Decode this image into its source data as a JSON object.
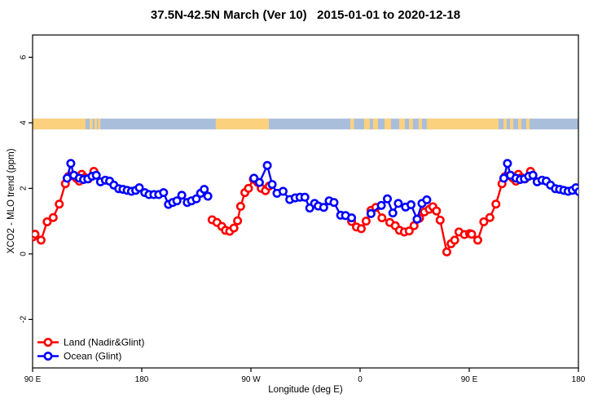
{
  "page": {
    "background": "#ffffff"
  },
  "chart_data": {
    "type": "line",
    "title": "37.5N-42.5N March (Ver 10)   2015-01-01 to 2020-12-18",
    "xlabel": "Longitude (deg E)",
    "ylabel": "XCO2 - MLO trend (ppm)",
    "x_axis_span_deg": [
      90,
      540
    ],
    "x_wrap_note": "x axis spans 450 degrees of longitude: 90E eastward to 180, then 90W, 0, 90E, 180 - the 90E-180E range is plotted twice (wrap-around)",
    "ylim": [
      -3.48,
      6.68
    ],
    "grid": false,
    "legend_position": "bottom-left",
    "x_ticks": [
      {
        "axis_pos": 90,
        "label": "90 E"
      },
      {
        "axis_pos": 180,
        "label": "180"
      },
      {
        "axis_pos": 270,
        "label": "90 W"
      },
      {
        "axis_pos": 360,
        "label": "0"
      },
      {
        "axis_pos": 450,
        "label": "90 E"
      },
      {
        "axis_pos": 540,
        "label": "180"
      }
    ],
    "y_ticks": [
      {
        "value": 6,
        "label": "6"
      },
      {
        "value": 4,
        "label": "4"
      },
      {
        "value": 2,
        "label": "2"
      },
      {
        "value": 0,
        "label": "0"
      },
      {
        "value": -2,
        "label": "-2"
      }
    ],
    "map_strip": {
      "description": "thin world-map band at y~4 showing land (orange) vs ocean (blue) along longitude near 40N",
      "value_range": [
        3.8,
        4.13
      ],
      "ocean_color": "#a9bedb",
      "land_color": "#fbd17e",
      "land_segments": [
        [
          90,
          133.7
        ],
        [
          137,
          139.5
        ],
        [
          141,
          143
        ],
        [
          144,
          145.8
        ],
        [
          241,
          284.8
        ],
        [
          352,
          355
        ],
        [
          363.3,
          368
        ],
        [
          370.7,
          374.7
        ],
        [
          380.1,
          385.5
        ],
        [
          392.2,
          396.9
        ],
        [
          400.3,
          403.6
        ],
        [
          408.3,
          411
        ],
        [
          415,
          474.2
        ],
        [
          478.2,
          480.9
        ],
        [
          483.6,
          486.3
        ],
        [
          490.3,
          493
        ],
        [
          497,
          499.7
        ]
      ]
    },
    "series": [
      {
        "name": "Land (Nadir&Glint)",
        "color": "#ff0000",
        "marker": "open-circle",
        "segments": [
          [
            [
              90.3,
              0.52
            ],
            [
              92,
              0.6
            ],
            [
              97,
              0.42
            ],
            [
              102,
              0.98
            ],
            [
              107,
              1.11
            ],
            [
              112,
              1.52
            ],
            [
              117,
              2.14
            ],
            [
              119.5,
              2.36
            ],
            [
              123,
              2.39
            ],
            [
              126,
              2.31
            ],
            [
              128.5,
              2.22
            ],
            [
              130.5,
              2.43
            ],
            [
              133,
              2.33
            ],
            [
              136,
              2.29
            ],
            [
              140.5,
              2.52
            ]
          ],
          [
            [
              238,
              1.04
            ],
            [
              242,
              0.96
            ],
            [
              246,
              0.84
            ],
            [
              249,
              0.72
            ],
            [
              252.5,
              0.69
            ],
            [
              256,
              0.79
            ],
            [
              259,
              1.01
            ],
            [
              261.5,
              1.45
            ],
            [
              265,
              1.87
            ],
            [
              268,
              2.0
            ],
            [
              272,
              2.28
            ],
            [
              275.5,
              2.18
            ],
            [
              278.5,
              2.0
            ],
            [
              282,
              1.93
            ],
            [
              285,
              2.07
            ]
          ],
          [
            [
              353,
              0.99
            ],
            [
              357,
              0.82
            ],
            [
              361,
              0.77
            ],
            [
              365,
              1.0
            ],
            [
              369,
              1.33
            ],
            [
              373,
              1.42
            ],
            [
              378,
              1.1
            ],
            [
              384.5,
              0.96
            ],
            [
              389,
              0.86
            ],
            [
              392.5,
              0.72
            ],
            [
              396.5,
              0.67
            ],
            [
              400.5,
              0.7
            ],
            [
              404.5,
              0.86
            ],
            [
              409,
              1.09
            ],
            [
              413,
              1.28
            ],
            [
              417,
              1.36
            ],
            [
              420,
              1.44
            ],
            [
              423,
              1.31
            ],
            [
              426,
              1.03
            ],
            [
              431.5,
              0.06
            ],
            [
              435,
              0.31
            ],
            [
              438,
              0.42
            ],
            [
              441.5,
              0.67
            ],
            [
              446,
              0.59
            ],
            [
              450.3,
              0.62
            ],
            [
              452,
              0.6
            ],
            [
              457,
              0.42
            ],
            [
              462,
              0.98
            ],
            [
              467,
              1.11
            ],
            [
              472,
              1.52
            ],
            [
              477,
              2.14
            ],
            [
              479.5,
              2.36
            ],
            [
              483,
              2.39
            ],
            [
              486,
              2.31
            ],
            [
              488.5,
              2.22
            ],
            [
              490.5,
              2.43
            ],
            [
              493,
              2.33
            ],
            [
              496,
              2.29
            ],
            [
              500.5,
              2.52
            ]
          ]
        ]
      },
      {
        "name": "Ocean (Glint)",
        "color": "#0000ff",
        "marker": "open-circle",
        "segments": [
          [
            [
              118.5,
              2.31
            ],
            [
              121.5,
              2.76
            ],
            [
              124,
              2.4
            ],
            [
              128.5,
              2.31
            ],
            [
              132,
              2.27
            ],
            [
              135.5,
              2.29
            ],
            [
              139,
              2.37
            ],
            [
              142.5,
              2.4
            ],
            [
              146,
              2.2
            ],
            [
              150,
              2.25
            ],
            [
              153.5,
              2.22
            ],
            [
              157,
              2.1
            ],
            [
              161,
              1.99
            ],
            [
              164.5,
              1.97
            ],
            [
              168,
              1.94
            ],
            [
              171.5,
              1.91
            ],
            [
              175,
              1.94
            ],
            [
              178,
              2.02
            ],
            [
              182.5,
              1.87
            ],
            [
              186,
              1.81
            ],
            [
              190,
              1.81
            ],
            [
              194,
              1.81
            ],
            [
              198,
              1.87
            ],
            [
              202,
              1.51
            ],
            [
              205.5,
              1.57
            ],
            [
              209,
              1.62
            ],
            [
              213,
              1.79
            ],
            [
              217.5,
              1.57
            ],
            [
              221,
              1.62
            ],
            [
              225,
              1.68
            ],
            [
              228.5,
              1.85
            ],
            [
              231.5,
              1.97
            ],
            [
              234.5,
              1.76
            ]
          ],
          [
            [
              272.5,
              2.31
            ],
            [
              277,
              2.18
            ],
            [
              283.5,
              2.7
            ],
            [
              287.5,
              2.12
            ],
            [
              291.5,
              1.85
            ],
            [
              296.5,
              1.91
            ],
            [
              302,
              1.66
            ],
            [
              306.5,
              1.71
            ],
            [
              310.5,
              1.73
            ],
            [
              314.5,
              1.73
            ],
            [
              318.5,
              1.4
            ],
            [
              322.5,
              1.54
            ],
            [
              325.5,
              1.46
            ],
            [
              330,
              1.42
            ],
            [
              334.5,
              1.62
            ],
            [
              338.5,
              1.57
            ],
            [
              344,
              1.18
            ],
            [
              348,
              1.17
            ],
            [
              353,
              1.1
            ]
          ],
          [
            [
              369,
              1.23
            ],
            [
              377.5,
              1.48
            ],
            [
              382.5,
              1.68
            ],
            [
              387,
              1.25
            ],
            [
              391.5,
              1.54
            ],
            [
              397.5,
              1.43
            ],
            [
              402,
              1.5
            ],
            [
              407,
              1.06
            ],
            [
              411,
              1.54
            ],
            [
              415,
              1.65
            ]
          ],
          [
            [
              478.5,
              2.31
            ],
            [
              481.5,
              2.76
            ],
            [
              484,
              2.4
            ],
            [
              488.5,
              2.31
            ],
            [
              492,
              2.27
            ],
            [
              495.5,
              2.29
            ],
            [
              499,
              2.37
            ],
            [
              502.5,
              2.4
            ],
            [
              506,
              2.2
            ],
            [
              510,
              2.25
            ],
            [
              513.5,
              2.22
            ],
            [
              517,
              2.1
            ],
            [
              521,
              1.99
            ],
            [
              524.5,
              1.97
            ],
            [
              528,
              1.94
            ],
            [
              531.5,
              1.91
            ],
            [
              535,
              1.94
            ],
            [
              538,
              2.02
            ],
            [
              540.5,
              1.9
            ]
          ]
        ]
      }
    ]
  }
}
